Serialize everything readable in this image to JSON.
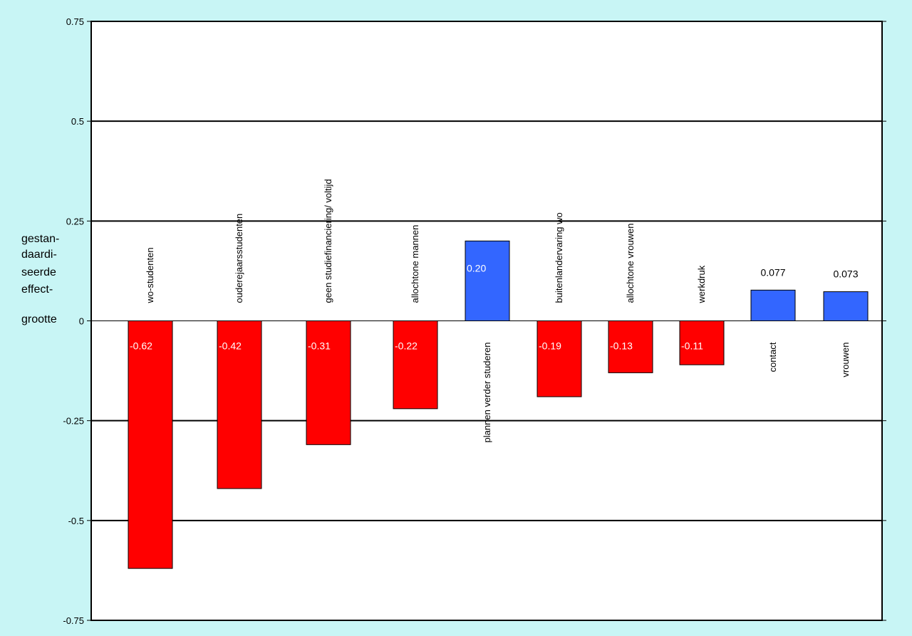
{
  "chart_data": {
    "type": "bar",
    "ylabel_lines": [
      "gestan-",
      "daardi-",
      "seerde",
      "effect-",
      "grootte"
    ],
    "ylim": [
      -0.75,
      0.75
    ],
    "yticks": [
      {
        "value": 0.75,
        "label": "0.75"
      },
      {
        "value": 0.5,
        "label": "0.5"
      },
      {
        "value": 0.25,
        "label": "0.25"
      },
      {
        "value": 0,
        "label": "0"
      },
      {
        "value": -0.25,
        "label": "-0.25"
      },
      {
        "value": -0.5,
        "label": "-0.5"
      },
      {
        "value": -0.75,
        "label": "-0.75"
      }
    ],
    "grid": true,
    "colors": {
      "background": "#c8f5f5",
      "plot_area": "#ffffff",
      "negative": "#ff0000",
      "positive": "#3366ff",
      "grid": "#000000"
    },
    "bars": [
      {
        "category": "wo-studenten",
        "value": -0.62,
        "data_label": "-0.62"
      },
      {
        "category": "ouderejaarsstudenten",
        "value": -0.42,
        "data_label": "-0.42"
      },
      {
        "category": "geen studiefinanciering/ voltijd",
        "value": -0.31,
        "data_label": "-0.31"
      },
      {
        "category": "allochtone mannen",
        "value": -0.22,
        "data_label": "-0.22"
      },
      {
        "category": "plannen verder studeren",
        "value": 0.2,
        "data_label": "0.20"
      },
      {
        "category": "buitenlandervaring wo",
        "value": -0.19,
        "data_label": "-0.19"
      },
      {
        "category": "allochtone vrouwen",
        "value": -0.13,
        "data_label": "-0.13"
      },
      {
        "category": "werkdruk",
        "value": -0.11,
        "data_label": "-0.11"
      },
      {
        "category": "contact",
        "value": 0.077,
        "data_label": "0.077"
      },
      {
        "category": "vrouwen",
        "value": 0.073,
        "data_label": "0.073"
      }
    ]
  }
}
